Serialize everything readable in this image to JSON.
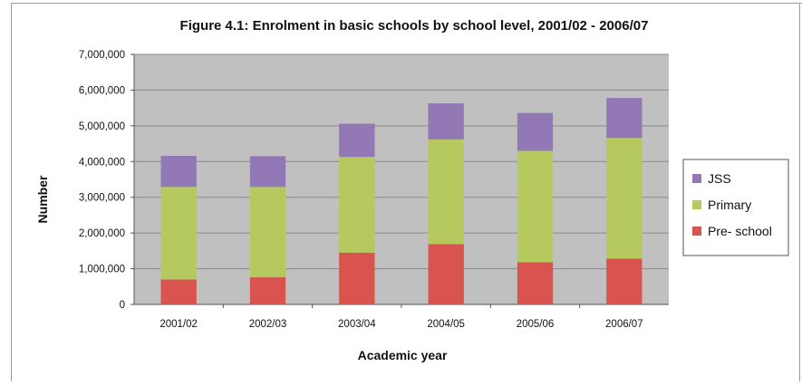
{
  "chart_data": {
    "type": "bar",
    "stacked": true,
    "title": "Figure 4.1: Enrolment in basic schools by school level, 2001/02 - 2006/07",
    "xlabel": "Academic year",
    "ylabel": "Number",
    "ylim": [
      0,
      7000000
    ],
    "yticks": [
      0,
      1000000,
      2000000,
      3000000,
      4000000,
      5000000,
      6000000,
      7000000
    ],
    "ytick_labels": [
      "0",
      "1,000,000",
      "2,000,000",
      "3,000,000",
      "4,000,000",
      "5,000,000",
      "6,000,000",
      "7,000,000"
    ],
    "grid": true,
    "legend_position": "right",
    "categories": [
      "2001/02",
      "2002/03",
      "2003/04",
      "2004/05",
      "2005/06",
      "2006/07"
    ],
    "series": [
      {
        "name": "Pre- school",
        "color": "#d9534f",
        "values": [
          700000,
          760000,
          1450000,
          1690000,
          1180000,
          1280000
        ]
      },
      {
        "name": "Primary",
        "color": "#b5c95e",
        "values": [
          2590000,
          2530000,
          2680000,
          2930000,
          3120000,
          3380000
        ]
      },
      {
        "name": "JSS",
        "color": "#9278b4",
        "values": [
          870000,
          860000,
          930000,
          1010000,
          1060000,
          1120000
        ]
      }
    ],
    "legend_order": [
      "JSS",
      "Primary",
      "Pre- school"
    ],
    "plot_background": "#c0c0c0"
  }
}
